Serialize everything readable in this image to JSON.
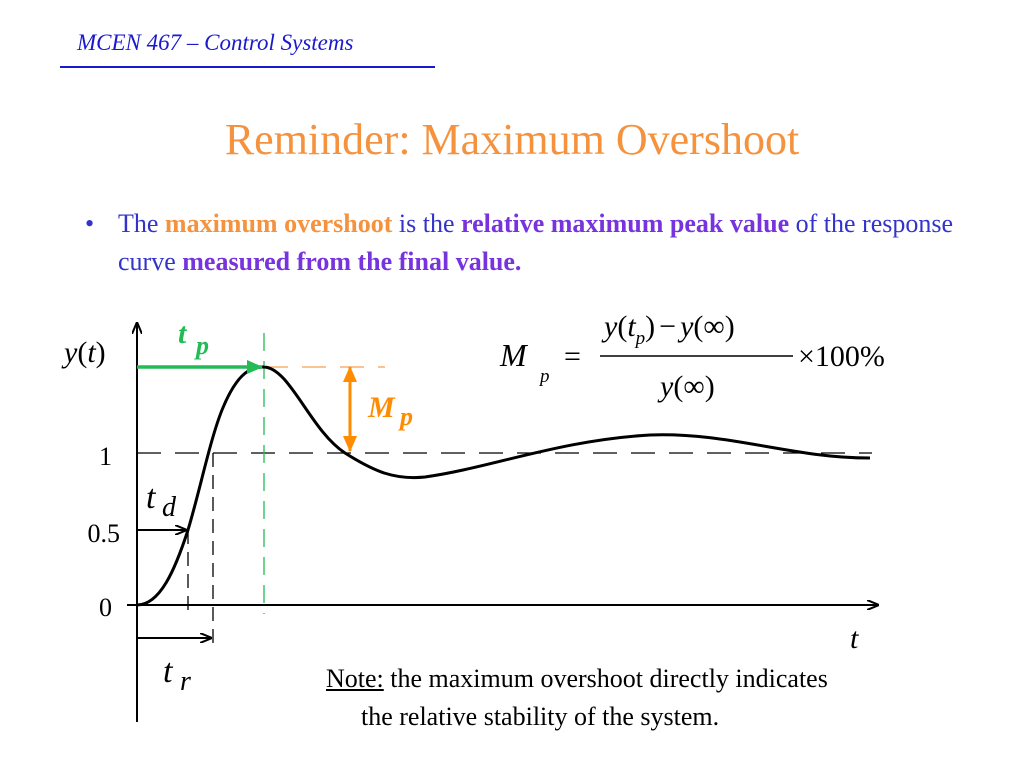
{
  "header": {
    "course": "MCEN 467 – Control Systems"
  },
  "title": "Reminder: Maximum Overshoot",
  "bullet": {
    "marker": "•",
    "p1": "The ",
    "p2": "maximum overshoot",
    "p3": " is the ",
    "p4": "relative maximum peak value",
    "p5": " of the response curve ",
    "p6": "measured from the final value."
  },
  "diagram": {
    "y_axis_label": {
      "y": "y",
      "open": "(",
      "t": "t",
      "close": ")"
    },
    "x_axis_label": "t",
    "tick_1": "1",
    "tick_05": "0.5",
    "tick_0": "0",
    "tp": {
      "main": "t",
      "sub": "p"
    },
    "mp": {
      "main": "M",
      "sub": "p"
    },
    "td": {
      "main": "t",
      "sub": "d"
    },
    "tr": {
      "main": "t",
      "sub": "r"
    }
  },
  "formula": {
    "lhs_main": "M",
    "lhs_sub": "p",
    "equals": "=",
    "num_y1": "y",
    "num_open1": "(",
    "num_t": "t",
    "num_sub": "p",
    "num_close1": ")",
    "num_minus": "−",
    "num_y2": "y",
    "num_inf": "(∞)",
    "den_y": "y",
    "den_inf": "(∞)",
    "times": "×100%"
  },
  "note": {
    "label": "Note:",
    "line1": " the maximum overshoot directly indicates",
    "line2": "the relative stability of the system."
  },
  "colors": {
    "title": "#f5923e",
    "text_blue": "#3333cc",
    "highlight_purple": "#7733dd",
    "tp_green": "#22bb55",
    "mp_orange": "#ff8c00"
  }
}
